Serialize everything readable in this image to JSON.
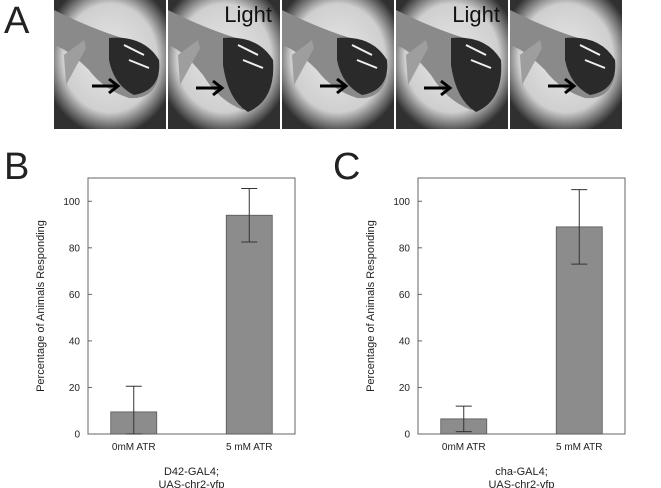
{
  "panel_a": {
    "letter": "A",
    "frames": [
      {
        "label": ""
      },
      {
        "label": "Light"
      },
      {
        "label": ""
      },
      {
        "label": "Light"
      },
      {
        "label": ""
      }
    ]
  },
  "chart_data": [
    {
      "type": "bar",
      "panel_letter": "B",
      "categories": [
        "0mM ATR",
        "5 mM ATR"
      ],
      "values": [
        9.5,
        94
      ],
      "errors": [
        11,
        11.5
      ],
      "ylabel": "Percentage of Animals Responding",
      "ylim": [
        0,
        110
      ],
      "yticks": [
        "0",
        "20",
        "40",
        "60",
        "80",
        "100"
      ],
      "caption_lines": [
        "D42-GAL4;",
        "UAS-chr2-yfp"
      ],
      "bar_color": "#8c8c8c"
    },
    {
      "type": "bar",
      "panel_letter": "C",
      "categories": [
        "0mM ATR",
        "5 mM ATR"
      ],
      "values": [
        6.5,
        89
      ],
      "errors": [
        5.5,
        16
      ],
      "ylabel": "Percentage of Animals Responding",
      "ylim": [
        0,
        110
      ],
      "yticks": [
        "0",
        "20",
        "40",
        "60",
        "80",
        "100"
      ],
      "caption_lines": [
        "cha-GAL4;",
        "UAS-chr2-yfp"
      ],
      "bar_color": "#8c8c8c"
    }
  ]
}
